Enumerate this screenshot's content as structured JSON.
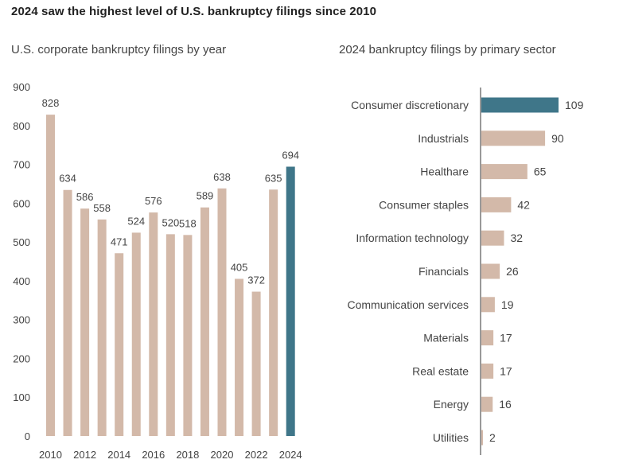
{
  "title": "2024 saw the highest level of U.S. bankruptcy filings since 2010",
  "colors": {
    "normal": "#d3b9a9",
    "highlight": "#3f7689",
    "axis": "#333333",
    "text": "#444444"
  },
  "chart_data": [
    {
      "type": "bar",
      "title": "U.S. corporate bankruptcy filings by year",
      "categories": [
        "2010",
        "2011",
        "2012",
        "2013",
        "2014",
        "2015",
        "2016",
        "2017",
        "2018",
        "2019",
        "2020",
        "2021",
        "2022",
        "2023",
        "2024"
      ],
      "values": [
        828,
        634,
        586,
        558,
        471,
        524,
        576,
        520,
        518,
        589,
        638,
        405,
        372,
        635,
        694
      ],
      "highlight_category": "2024",
      "x_tick_labels": [
        "2010",
        "2012",
        "2014",
        "2016",
        "2018",
        "2020",
        "2022",
        "2024"
      ],
      "y_ticks": [
        "0",
        "100",
        "200",
        "300",
        "400",
        "500",
        "600",
        "700",
        "800",
        "900"
      ],
      "ylim": [
        0,
        900
      ],
      "xlabel": "",
      "ylabel": "",
      "grid": false,
      "data_labels": true
    },
    {
      "type": "bar",
      "orientation": "horizontal",
      "title": "2024 bankruptcy filings by primary sector",
      "categories": [
        "Consumer discretionary",
        "Industrials",
        "Healthare",
        "Consumer staples",
        "Information technology",
        "Financials",
        "Communication services",
        "Materials",
        "Real estate",
        "Energy",
        "Utilities"
      ],
      "values": [
        109,
        90,
        65,
        42,
        32,
        26,
        19,
        17,
        17,
        16,
        2
      ],
      "highlight_category": "Consumer discretionary",
      "grid": false,
      "data_labels": true
    }
  ]
}
